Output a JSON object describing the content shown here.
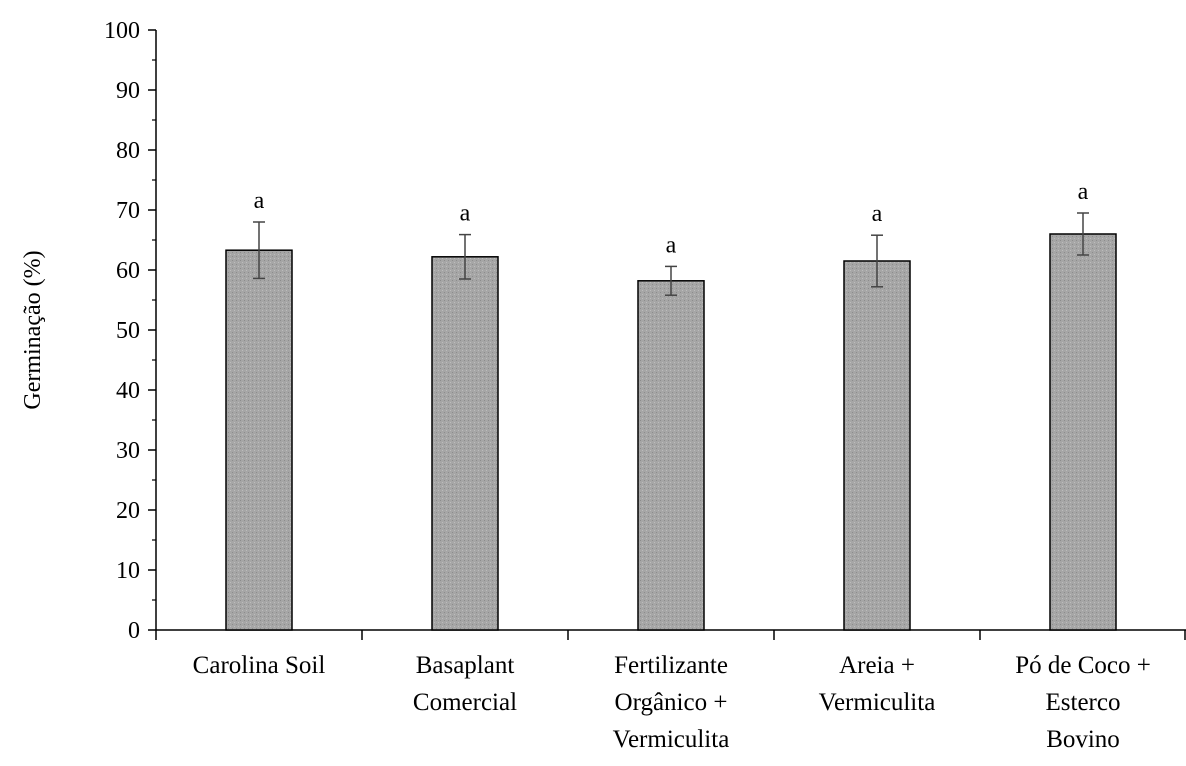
{
  "chart_data": {
    "type": "bar",
    "categories": [
      [
        "Carolina Soil"
      ],
      [
        "Basaplant",
        "Comercial"
      ],
      [
        "Fertilizante",
        "Orgânico +",
        "Vermiculita"
      ],
      [
        "Areia +",
        "Vermiculita"
      ],
      [
        "Pó de Coco +",
        "Esterco",
        "Bovino"
      ]
    ],
    "values": [
      63.3,
      62.2,
      58.2,
      61.5,
      66.0
    ],
    "errors": [
      4.7,
      3.7,
      2.4,
      4.3,
      3.5
    ],
    "significance": [
      "a",
      "a",
      "a",
      "a",
      "a"
    ],
    "ylabel": "Germinação  (%)",
    "xlabel": "",
    "ylim": [
      0,
      100
    ],
    "yticks": [
      0,
      10,
      20,
      30,
      40,
      50,
      60,
      70,
      80,
      90,
      100
    ],
    "bar_color": "#a6a6a6",
    "grid": false,
    "legend": "none"
  }
}
